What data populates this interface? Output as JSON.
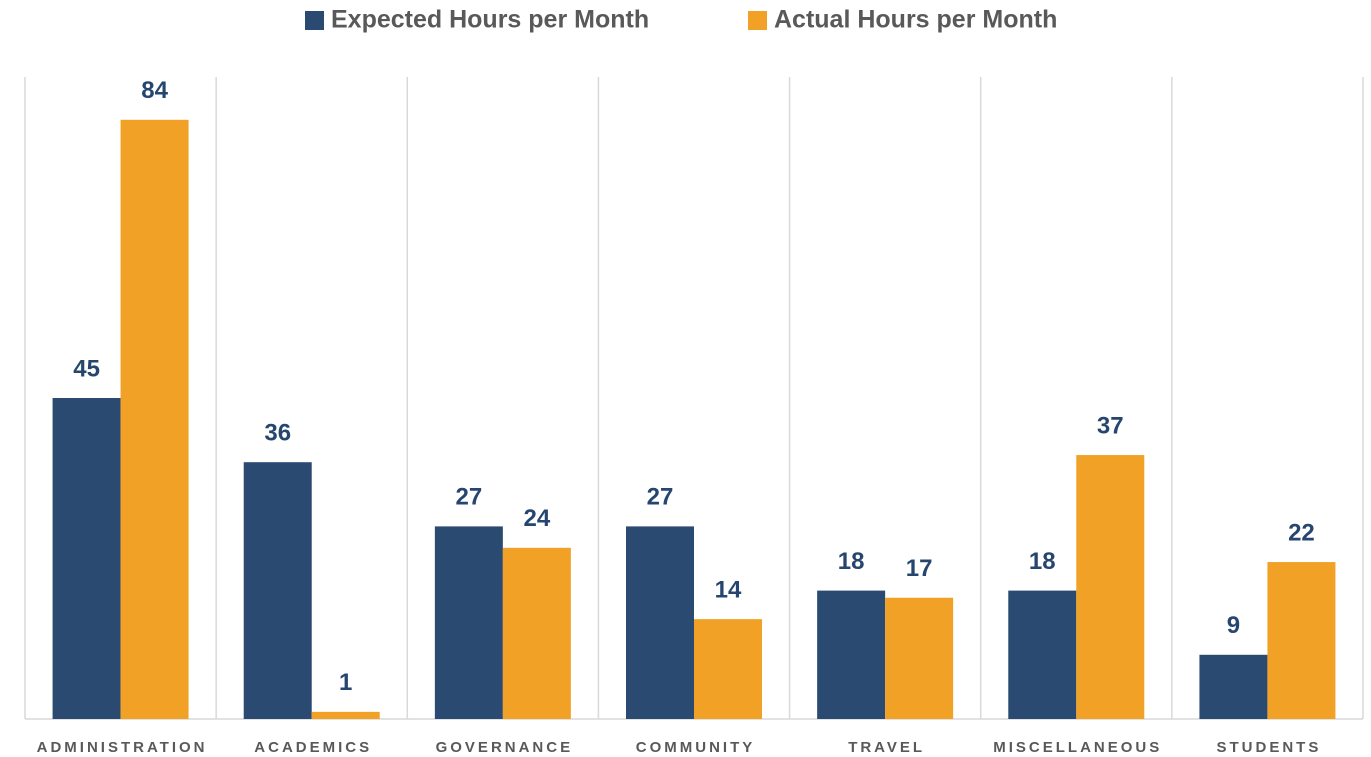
{
  "chart_data": {
    "type": "bar",
    "categories": [
      "ADMINISTRATION",
      "ACADEMICS",
      "GOVERNANCE",
      "COMMUNITY",
      "TRAVEL",
      "MISCELLANEOUS",
      "STUDENTS"
    ],
    "series": [
      {
        "name": "Expected Hours per Month",
        "color": "#2a4a72",
        "values": [
          45,
          36,
          27,
          27,
          18,
          18,
          9
        ]
      },
      {
        "name": "Actual Hours per Month",
        "color": "#f2a127",
        "values": [
          84,
          1,
          24,
          14,
          17,
          37,
          22
        ]
      }
    ],
    "ylim": [
      0,
      90
    ],
    "legend": "top"
  }
}
